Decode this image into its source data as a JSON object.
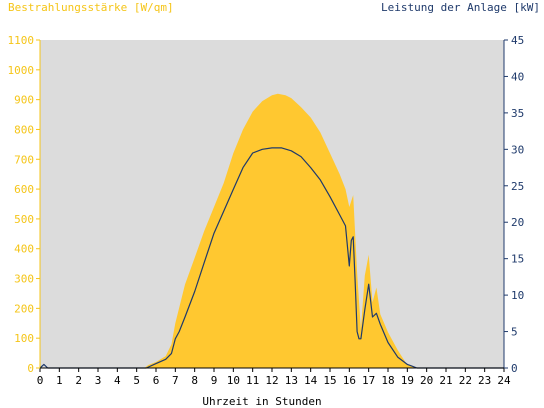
{
  "chart_data": {
    "type": "area",
    "ylabel_left": "Bestrahlungsstärke [W/qm]",
    "ylabel_right": "Leistung der Anlage [kW]",
    "xlabel": "Uhrzeit in Stunden",
    "xlim": [
      0,
      24
    ],
    "ylim_left": [
      0,
      1100
    ],
    "ylim_right": [
      0,
      45
    ],
    "x_ticks": [
      "0",
      "1",
      "2",
      "3",
      "4",
      "5",
      "6",
      "7",
      "8",
      "9",
      "10",
      "11",
      "12",
      "13",
      "14",
      "15",
      "16",
      "17",
      "18",
      "19",
      "20",
      "21",
      "22",
      "23",
      "24"
    ],
    "y_left_ticks": [
      "0",
      "100",
      "200",
      "300",
      "400",
      "500",
      "600",
      "700",
      "800",
      "900",
      "1000",
      "1100"
    ],
    "y_right_ticks": [
      "0",
      "5",
      "10",
      "15",
      "20",
      "25",
      "30",
      "35",
      "40",
      "45"
    ],
    "grid": false,
    "colors": {
      "plot_bg": "#dcdcdc",
      "irradiance_fill": "#ffc830",
      "power_line": "#1f3a6b",
      "left_axis": "#f5c518",
      "right_axis": "#1f3a6b"
    },
    "series": [
      {
        "name": "Bestrahlungsstärke [W/qm]",
        "axis": "left",
        "style": "area",
        "x": [
          0,
          5.4,
          5.6,
          6.0,
          6.5,
          6.8,
          7.0,
          7.5,
          8.0,
          8.5,
          9.0,
          9.5,
          10.0,
          10.5,
          11.0,
          11.5,
          12.0,
          12.3,
          12.7,
          13.0,
          13.5,
          14.0,
          14.5,
          15.0,
          15.5,
          15.8,
          16.0,
          16.2,
          16.4,
          16.6,
          16.8,
          17.0,
          17.2,
          17.4,
          17.6,
          18.0,
          18.5,
          19.0,
          19.3,
          19.5,
          24
        ],
        "y": [
          0,
          0,
          10,
          20,
          40,
          80,
          150,
          280,
          370,
          460,
          540,
          620,
          720,
          800,
          860,
          895,
          915,
          920,
          915,
          905,
          875,
          840,
          790,
          720,
          650,
          600,
          540,
          580,
          320,
          130,
          310,
          380,
          220,
          270,
          180,
          120,
          60,
          10,
          5,
          0,
          0
        ]
      },
      {
        "name": "Leistung der Anlage [kW]",
        "axis": "right",
        "style": "line",
        "x": [
          0,
          0.2,
          0.4,
          5.5,
          6.0,
          6.5,
          6.8,
          7.0,
          7.2,
          7.5,
          8.0,
          8.5,
          9.0,
          9.5,
          10.0,
          10.5,
          11.0,
          11.5,
          12.0,
          12.5,
          13.0,
          13.5,
          14.0,
          14.5,
          15.0,
          15.5,
          15.8,
          16.0,
          16.1,
          16.2,
          16.3,
          16.4,
          16.5,
          16.6,
          16.8,
          17.0,
          17.2,
          17.4,
          17.6,
          18.0,
          18.5,
          19.0,
          19.2,
          19.5,
          24
        ],
        "y": [
          0,
          0.5,
          0,
          0,
          0.6,
          1.2,
          2.0,
          4.0,
          5.0,
          7.0,
          10.5,
          14.5,
          18.5,
          21.5,
          24.5,
          27.5,
          29.5,
          30.0,
          30.2,
          30.2,
          29.8,
          29.0,
          27.5,
          25.8,
          23.5,
          21.0,
          19.5,
          14.0,
          17.5,
          18.0,
          12.0,
          5.0,
          4.0,
          4.0,
          8.0,
          11.5,
          7.0,
          7.5,
          6.0,
          3.5,
          1.5,
          0.5,
          0.3,
          0,
          0
        ]
      }
    ]
  }
}
